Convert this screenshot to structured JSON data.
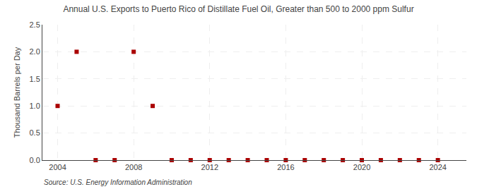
{
  "chart_data": {
    "type": "scatter",
    "title": "Annual U.S. Exports to Puerto Rico of Distillate Fuel Oil, Greater than 500 to 2000 ppm Sulfur",
    "y_label": "Thousand Barrels per Day",
    "annotations": [
      "Source: U.S. Energy Information Administration"
    ],
    "x": [
      2004,
      2005,
      2006,
      2007,
      2008,
      2009,
      2010,
      2011,
      2012,
      2013,
      2014,
      2015,
      2016,
      2017,
      2018,
      2019,
      2020,
      2021,
      2022,
      2023,
      2024
    ],
    "values": [
      1.0,
      2.0,
      0.0,
      0.0,
      2.0,
      1.0,
      0.0,
      0.0,
      0.0,
      0.0,
      0.0,
      0.0,
      0.0,
      0.0,
      0.0,
      0.0,
      0.0,
      0.0,
      0.0,
      0.0,
      0.0
    ],
    "color": "#aa0000",
    "marker": "square",
    "xlim": [
      2003.2,
      2025.5
    ],
    "xticks": [
      2004,
      2008,
      2012,
      2016,
      2020,
      2024
    ],
    "ylim": [
      0,
      2.5
    ],
    "yticks": [
      {
        "value": 0,
        "label": "0.0"
      },
      0.5,
      {
        "value": 1,
        "label": "1.0"
      },
      1.5,
      {
        "value": 2,
        "label": "2.0"
      },
      2.5
    ],
    "grid": true
  }
}
